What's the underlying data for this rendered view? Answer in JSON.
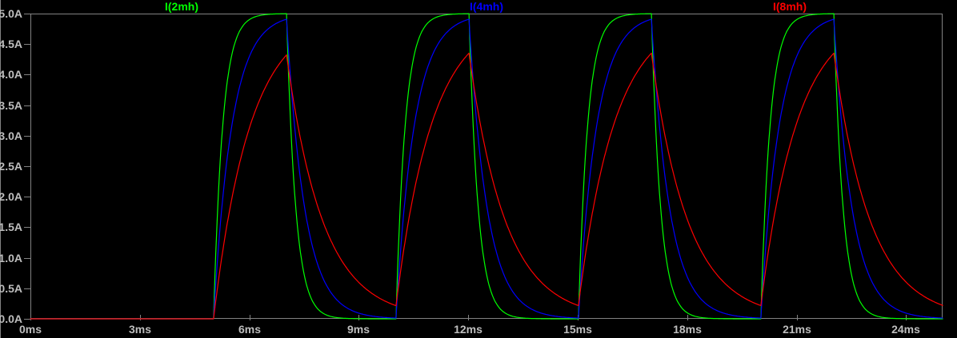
{
  "colors": {
    "background": "#000000",
    "frame": "#828282",
    "tick_label": "#bebebe"
  },
  "chart_data": {
    "type": "line",
    "title": "",
    "grid": false,
    "legend_position": "top-inline",
    "x_axis": {
      "unit": "ms",
      "range": [
        0,
        25
      ],
      "ticks": [
        0,
        3,
        6,
        9,
        12,
        15,
        18,
        21,
        24
      ],
      "tick_labels": [
        "0ms",
        "3ms",
        "6ms",
        "9ms",
        "12ms",
        "15ms",
        "18ms",
        "21ms",
        "24ms"
      ]
    },
    "y_axis": {
      "unit": "A",
      "range": [
        0,
        5
      ],
      "ticks": [
        0,
        0.5,
        1,
        1.5,
        2,
        2.5,
        3,
        3.5,
        4,
        4.5,
        5
      ],
      "tick_labels": [
        "0.0A",
        "0.5A",
        "1.0A",
        "1.5A",
        "2.0A",
        "2.5A",
        "3.0A",
        "3.5A",
        "4.0A",
        "4.5A",
        "5.0A"
      ]
    },
    "excitation": {
      "waveform": "square-pulse",
      "amplitude_A": 5,
      "pulse_starts_ms": [
        5,
        10,
        15,
        20
      ],
      "pulse_width_ms": 2,
      "period_ms": 5
    },
    "series": [
      {
        "name": "I(2mh)",
        "color": "#00ff00",
        "tau_ms": 0.25,
        "peak_A": 5.0,
        "min_A": 0.0
      },
      {
        "name": "I(4mh)",
        "color": "#0000ff",
        "tau_ms": 0.5,
        "peak_A": 4.9,
        "min_A": 0.01
      },
      {
        "name": "I(8mh)",
        "color": "#ff0000",
        "tau_ms": 1.0,
        "peak_A": 4.33,
        "min_A": 0.22
      }
    ]
  }
}
